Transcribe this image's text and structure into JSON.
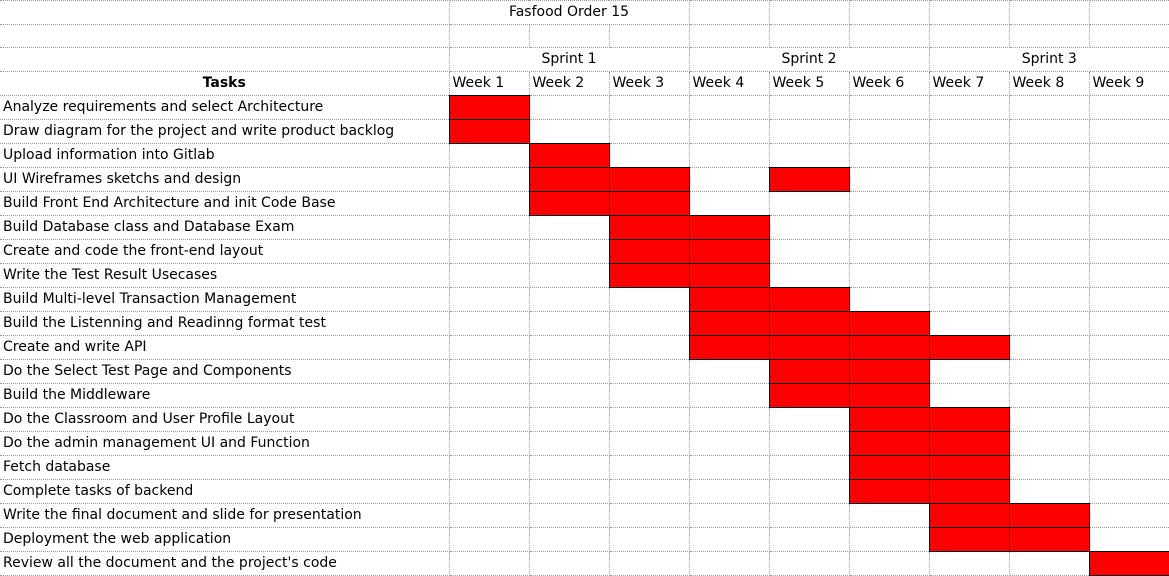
{
  "title": "Fasfood Order 15",
  "tasks_header": "Tasks",
  "bar_color": "#ff0000",
  "sprints": [
    {
      "label": "Sprint 1",
      "start_week": 1,
      "span": 3
    },
    {
      "label": "Sprint 2",
      "start_week": 4,
      "span": 3
    },
    {
      "label": "Sprint 3",
      "start_week": 7,
      "span": 3
    }
  ],
  "weeks": [
    "Week 1",
    "Week 2",
    "Week 3",
    "Week 4",
    "Week 5",
    "Week 6",
    "Week 7",
    "Week 8",
    "Week 9"
  ],
  "tasks": [
    {
      "name": "Analyze requirements and select Architecture",
      "weeks": [
        1
      ]
    },
    {
      "name": "Draw diagram for the project and write product backlog",
      "weeks": [
        1
      ]
    },
    {
      "name": "Upload information into Gitlab",
      "weeks": [
        2
      ]
    },
    {
      "name": "UI Wireframes sketchs and design",
      "weeks": [
        2,
        3,
        5
      ]
    },
    {
      "name": "Build Front End Architecture and init Code Base",
      "weeks": [
        2,
        3
      ]
    },
    {
      "name": "Build Database class and Database Exam",
      "weeks": [
        3,
        4
      ]
    },
    {
      "name": "Create and code the front-end layout",
      "weeks": [
        3,
        4
      ]
    },
    {
      "name": "Write the Test Result Usecases",
      "weeks": [
        3,
        4
      ]
    },
    {
      "name": "Build Multi-level Transaction Management",
      "weeks": [
        4,
        5
      ]
    },
    {
      "name": "Build the Listenning and Readinng format test",
      "weeks": [
        4,
        5,
        6
      ]
    },
    {
      "name": "Create and write API",
      "weeks": [
        4,
        5,
        6,
        7
      ]
    },
    {
      "name": "Do the Select Test Page and Components",
      "weeks": [
        5,
        6
      ]
    },
    {
      "name": "Build the Middleware",
      "weeks": [
        5,
        6
      ]
    },
    {
      "name": "Do the Classroom and User Profile Layout",
      "weeks": [
        6,
        7
      ]
    },
    {
      "name": "Do the admin management UI and Function",
      "weeks": [
        6,
        7
      ]
    },
    {
      "name": "Fetch database",
      "weeks": [
        6,
        7
      ]
    },
    {
      "name": "Complete tasks of backend",
      "weeks": [
        6,
        7
      ]
    },
    {
      "name": "Write the final document and slide for presentation",
      "weeks": [
        7,
        8
      ]
    },
    {
      "name": "Deployment the web application",
      "weeks": [
        7,
        8
      ]
    },
    {
      "name": "Review all the document and the project's code",
      "weeks": [
        9
      ]
    }
  ]
}
